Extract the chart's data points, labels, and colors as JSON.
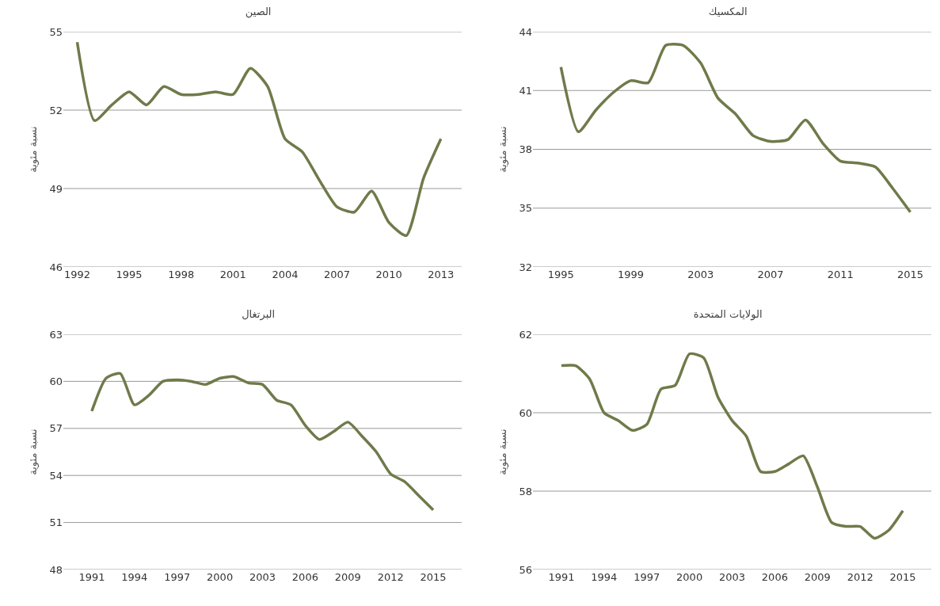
{
  "chart_data": [
    {
      "type": "line",
      "title": "الصين",
      "ylabel": "نسبة مئوية",
      "x": [
        1992,
        1993,
        1994,
        1995,
        1996,
        1997,
        1998,
        1999,
        2000,
        2001,
        2002,
        2003,
        2004,
        2005,
        2006,
        2007,
        2008,
        2009,
        2010,
        2011,
        2012,
        2013
      ],
      "series": [
        {
          "color": "#6f7a4a",
          "values": [
            54.6,
            51.6,
            52.2,
            52.7,
            52.2,
            52.9,
            52.6,
            52.6,
            52.7,
            52.6,
            53.6,
            52.9,
            50.9,
            50.4,
            49.3,
            48.3,
            48.1,
            48.9,
            47.7,
            47.2,
            49.4,
            50.9
          ]
        }
      ],
      "xlim": [
        1991.2,
        2014.2
      ],
      "xticks": [
        1992,
        1995,
        1998,
        2001,
        2004,
        2007,
        2010,
        2013
      ],
      "ylim": [
        46,
        55
      ],
      "yticks": [
        46,
        49,
        52,
        55
      ],
      "grid": "y",
      "marker": "none",
      "line_style": "solid"
    },
    {
      "type": "line",
      "title": "المكسيك",
      "ylabel": "نسبة مئوية",
      "x": [
        1995,
        1996,
        1997,
        1998,
        1999,
        2000,
        2001,
        2002,
        2003,
        2004,
        2005,
        2006,
        2007,
        2008,
        2009,
        2010,
        2011,
        2012,
        2013,
        2014,
        2015
      ],
      "series": [
        {
          "color": "#6f7a4a",
          "values": [
            42.2,
            38.9,
            40.0,
            40.9,
            41.5,
            41.4,
            43.3,
            43.3,
            42.4,
            40.6,
            39.8,
            38.7,
            38.4,
            38.5,
            39.5,
            38.3,
            37.4,
            37.3,
            37.1,
            36.0,
            34.8
          ]
        }
      ],
      "xlim": [
        1993.4,
        2016.2
      ],
      "xticks": [
        1995,
        1999,
        2003,
        2007,
        2011,
        2015
      ],
      "ylim": [
        32,
        44
      ],
      "yticks": [
        32,
        35,
        38,
        41,
        44
      ],
      "grid": "y",
      "marker": "none",
      "line_style": "solid"
    },
    {
      "type": "line",
      "title": "البرتغال",
      "ylabel": "نسبة مئوية",
      "x": [
        1991,
        1992,
        1993,
        1994,
        1995,
        1996,
        1997,
        1998,
        1999,
        2000,
        2001,
        2002,
        2003,
        2004,
        2005,
        2006,
        2007,
        2008,
        2009,
        2010,
        2011,
        2012,
        2013,
        2014,
        2015
      ],
      "series": [
        {
          "color": "#6f7a4a",
          "values": [
            58.1,
            60.2,
            60.5,
            58.5,
            59.1,
            60.0,
            60.1,
            60.0,
            59.8,
            60.2,
            60.3,
            59.9,
            59.8,
            58.8,
            58.5,
            57.2,
            56.3,
            56.8,
            57.4,
            56.5,
            55.5,
            54.1,
            53.6,
            52.7,
            51.8
          ]
        }
      ],
      "xlim": [
        1989,
        2017
      ],
      "xticks": [
        1991,
        1994,
        1997,
        2000,
        2003,
        2006,
        2009,
        2012,
        2015
      ],
      "ylim": [
        48,
        63
      ],
      "yticks": [
        48,
        51,
        54,
        57,
        60,
        63
      ],
      "grid": "y",
      "marker": "none",
      "line_style": "solid"
    },
    {
      "type": "line",
      "title": "الولايات المتحدة",
      "ylabel": "نسبة مئوية",
      "x": [
        1991,
        1992,
        1993,
        1994,
        1995,
        1996,
        1997,
        1998,
        1999,
        2000,
        2001,
        2002,
        2003,
        2004,
        2005,
        2006,
        2007,
        2008,
        2009,
        2010,
        2011,
        2012,
        2013,
        2014,
        2015
      ],
      "series": [
        {
          "color": "#6f7a4a",
          "values": [
            61.2,
            61.2,
            60.85,
            60.0,
            59.8,
            59.55,
            59.7,
            60.6,
            60.7,
            61.5,
            61.4,
            60.4,
            59.8,
            59.4,
            58.5,
            58.5,
            58.7,
            58.9,
            58.1,
            57.2,
            57.1,
            57.1,
            56.8,
            57.0,
            57.5
          ]
        }
      ],
      "xlim": [
        1989,
        2017
      ],
      "xticks": [
        1991,
        1994,
        1997,
        2000,
        2003,
        2006,
        2009,
        2012,
        2015
      ],
      "ylim": [
        56,
        62
      ],
      "yticks": [
        56,
        58,
        60,
        62
      ],
      "grid": "y",
      "marker": "none",
      "line_style": "solid"
    }
  ]
}
